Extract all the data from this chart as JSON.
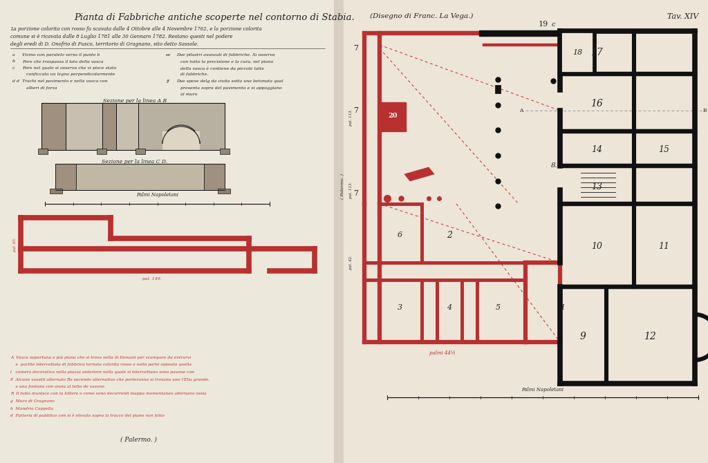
{
  "bg_color": "#ede5d8",
  "title": "Pianta di Fabbriche antiche scoperte nel contorno di Stabia.",
  "subtitle_center": "(Disegno di Franc. La Vega.)",
  "tav": "Tav. XIV",
  "red_color": "#b83030",
  "black_color": "#111111",
  "text_color": "#222222",
  "red_text_color": "#b83030",
  "page_split": 480
}
